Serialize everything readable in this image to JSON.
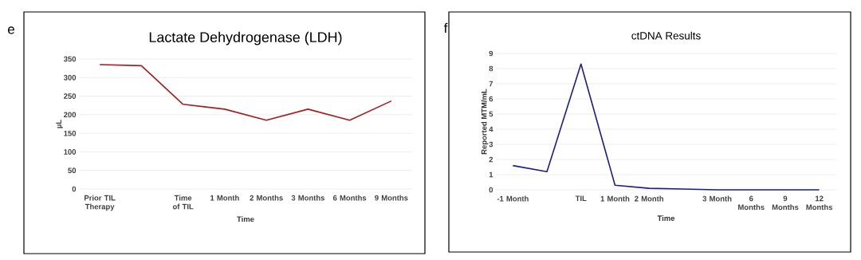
{
  "chart_data": [
    {
      "type": "line",
      "title": "Lactate Dehydrogenase (LDH)",
      "xlabel": "Time",
      "ylabel": "µL",
      "annotations": [
        "e"
      ],
      "categories": [
        "Prior TIL Therapy",
        null,
        "Time of TIL",
        "1 Month",
        "2 Months",
        "3 Months",
        "6 Months",
        "9 Months"
      ],
      "series": [
        {
          "color": "#a51d1d",
          "values": [
            335,
            332,
            228,
            215,
            185,
            215,
            185,
            237
          ]
        }
      ],
      "ylim": [
        0,
        350
      ],
      "yticks": [
        0,
        50,
        100,
        150,
        200,
        250,
        300,
        350
      ],
      "grid": "y",
      "marker": "none",
      "line_style": "solid"
    },
    {
      "type": "line",
      "title": "ctDNA Results",
      "xlabel": "Time",
      "ylabel": "Reported MTM/mL",
      "annotations": [
        "f"
      ],
      "categories": [
        "-1 Month",
        null,
        "TIL",
        "1 Month",
        "2 Month",
        null,
        "3 Month",
        "6 Months",
        "9 Months",
        "12 Months"
      ],
      "series": [
        {
          "color": "#1c1c8c",
          "values": [
            1.6,
            1.2,
            8.3,
            0.3,
            0.1,
            0.05,
            0,
            0,
            0,
            0
          ]
        }
      ],
      "ylim": [
        0,
        9
      ],
      "yticks": [
        0,
        1,
        2,
        3,
        4,
        5,
        6,
        7,
        8,
        9
      ],
      "grid": "y",
      "marker": "none",
      "line_style": "solid"
    }
  ]
}
